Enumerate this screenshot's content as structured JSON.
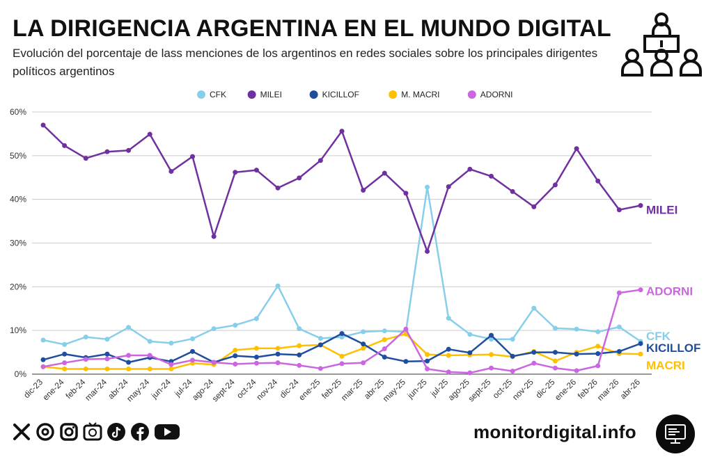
{
  "header": {
    "title": "LA DIRIGENCIA ARGENTINA EN EL MUNDO DIGITAL",
    "subtitle": "Evolución del porcentaje de lass menciones de los argentinos en redes sociales sobre los principales dirigentes políticos argentinos"
  },
  "footer": {
    "site": "monitordigital.info",
    "social_icons": [
      "x-icon",
      "threads-icon",
      "instagram-icon",
      "tv-icon",
      "tiktok-icon",
      "facebook-icon",
      "youtube-icon"
    ]
  },
  "chart_data": {
    "type": "line",
    "x": [
      "dic-23",
      "ene-24",
      "feb-24",
      "mar-24",
      "abr-24",
      "may-24",
      "jun-24",
      "jul-24",
      "ago-24",
      "sept-24",
      "oct-24",
      "nov-24",
      "dic-24",
      "ene-25",
      "feb-25",
      "mar-25",
      "abr-25",
      "may-25",
      "jun-25",
      "jul-25",
      "ago-25",
      "sept-25",
      "oct-25",
      "nov-25",
      "dic-25",
      "ene-26",
      "feb-26",
      "mar-26",
      "abr-26"
    ],
    "ylim": [
      0,
      60
    ],
    "yticks": [
      "0%",
      "10%",
      "20%",
      "30%",
      "40%",
      "50%",
      "60%"
    ],
    "grid": true,
    "legend_position": "top",
    "series": [
      {
        "name": "CFK",
        "color": "#87CEEB",
        "end_label": "CFK",
        "values": [
          7.8,
          6.8,
          8.5,
          8.0,
          10.7,
          7.5,
          7.1,
          8.1,
          10.4,
          11.2,
          12.7,
          20.2,
          10.4,
          8.2,
          8.5,
          9.7,
          9.9,
          9.7,
          42.8,
          12.8,
          9.1,
          8.0,
          8.0,
          15.1,
          10.5,
          10.3,
          9.7,
          10.8,
          7.5
        ]
      },
      {
        "name": "MILEI",
        "color": "#7030A0",
        "end_label": "MILEI",
        "values": [
          57.0,
          52.3,
          49.4,
          50.9,
          51.2,
          54.9,
          46.4,
          49.8,
          31.5,
          46.2,
          46.7,
          42.6,
          44.9,
          48.9,
          55.6,
          42.1,
          46.0,
          41.4,
          28.1,
          42.9,
          46.9,
          45.3,
          41.8,
          38.3,
          43.3,
          51.6,
          44.2,
          37.6,
          38.6
        ]
      },
      {
        "name": "KICILLOF",
        "color": "#1F4E9F",
        "end_label": "KICILLOF",
        "values": [
          3.3,
          4.6,
          3.8,
          4.6,
          2.7,
          3.8,
          2.9,
          5.2,
          2.7,
          4.2,
          3.9,
          4.6,
          4.4,
          6.7,
          9.3,
          6.9,
          3.9,
          2.9,
          3.0,
          5.7,
          4.9,
          8.9,
          4.1,
          5.0,
          5.0,
          4.6,
          4.7,
          5.2,
          7.0
        ]
      },
      {
        "name": "M. MACRI",
        "color": "#FFC000",
        "end_label": "MACRI",
        "values": [
          1.7,
          1.2,
          1.2,
          1.2,
          1.2,
          1.2,
          1.2,
          2.5,
          2.2,
          5.5,
          5.9,
          5.9,
          6.5,
          6.7,
          4.1,
          5.9,
          7.9,
          9.2,
          4.5,
          4.3,
          4.4,
          4.5,
          4.0,
          5.2,
          3.0,
          5.0,
          6.4,
          4.7,
          4.6
        ]
      },
      {
        "name": "ADORNI",
        "color": "#CC66E0",
        "end_label": "ADORNI",
        "values": [
          1.7,
          2.6,
          3.4,
          3.5,
          4.3,
          4.3,
          2.2,
          3.2,
          2.7,
          2.3,
          2.5,
          2.6,
          2.0,
          1.3,
          2.4,
          2.6,
          5.8,
          10.3,
          1.2,
          0.5,
          0.3,
          1.4,
          0.7,
          2.5,
          1.4,
          0.8,
          1.9,
          18.6,
          19.3
        ]
      }
    ]
  }
}
